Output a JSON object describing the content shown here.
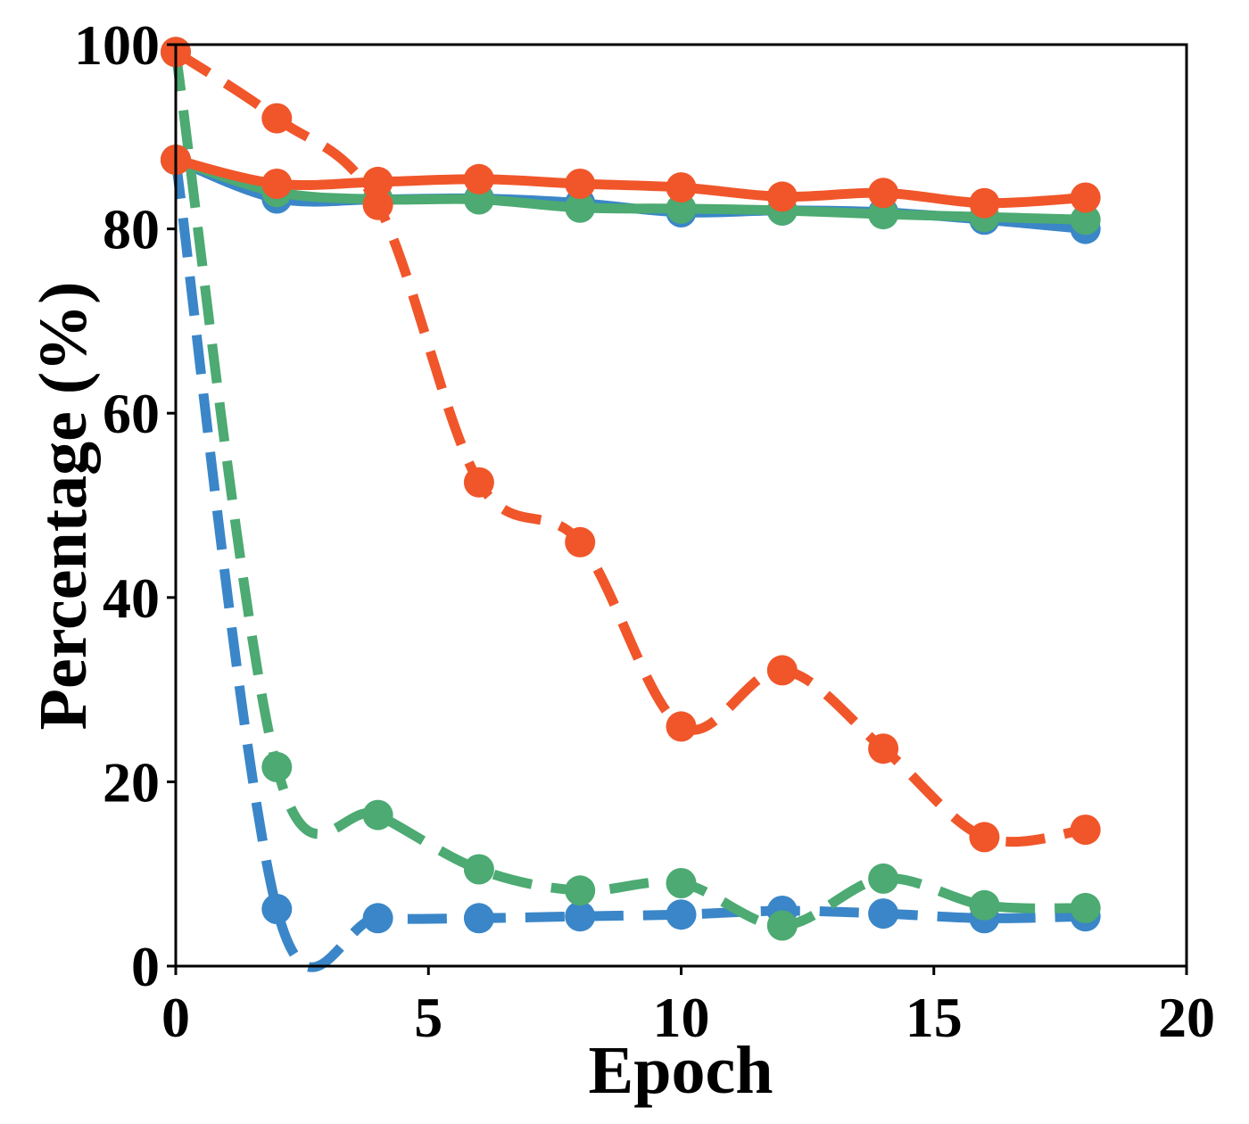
{
  "chart_data": {
    "type": "line",
    "title": "",
    "xlabel": "Epoch",
    "ylabel": "Percentage (%)",
    "xlim": [
      0,
      20
    ],
    "ylim": [
      0,
      100
    ],
    "xticks": [
      0,
      5,
      10,
      15,
      20
    ],
    "yticks": [
      0,
      20,
      40,
      60,
      80,
      100
    ],
    "grid": false,
    "legend": "none",
    "x": [
      0,
      2,
      4,
      6,
      8,
      10,
      12,
      14,
      16,
      18
    ],
    "series": [
      {
        "color": "#3a86c8",
        "linestyle": "solid",
        "values": [
          87.5,
          83.3,
          83.2,
          83.3,
          82.8,
          81.8,
          82.0,
          81.8,
          81.0,
          80.0
        ]
      },
      {
        "color": "#3a86c8",
        "linestyle": "dashed",
        "values": [
          87.5,
          6.2,
          5.2,
          5.2,
          5.4,
          5.6,
          6.0,
          5.7,
          5.2,
          5.4
        ]
      },
      {
        "color": "#4caa72",
        "linestyle": "solid",
        "values": [
          87.5,
          84.0,
          83.2,
          83.2,
          82.3,
          82.2,
          82.0,
          81.6,
          81.3,
          81.0
        ]
      },
      {
        "color": "#4caa72",
        "linestyle": "dashed",
        "values": [
          99.2,
          21.6,
          16.4,
          10.5,
          8.2,
          9.0,
          4.4,
          9.5,
          6.6,
          6.3
        ]
      },
      {
        "color": "#f0562a",
        "linestyle": "solid",
        "values": [
          87.5,
          84.9,
          85.1,
          85.4,
          84.9,
          84.5,
          83.5,
          83.9,
          82.8,
          83.4
        ]
      },
      {
        "color": "#f0562a",
        "linestyle": "dashed",
        "values": [
          99.2,
          92.0,
          82.6,
          52.5,
          46.0,
          26.0,
          32.1,
          23.6,
          14.0,
          14.8
        ]
      }
    ]
  }
}
